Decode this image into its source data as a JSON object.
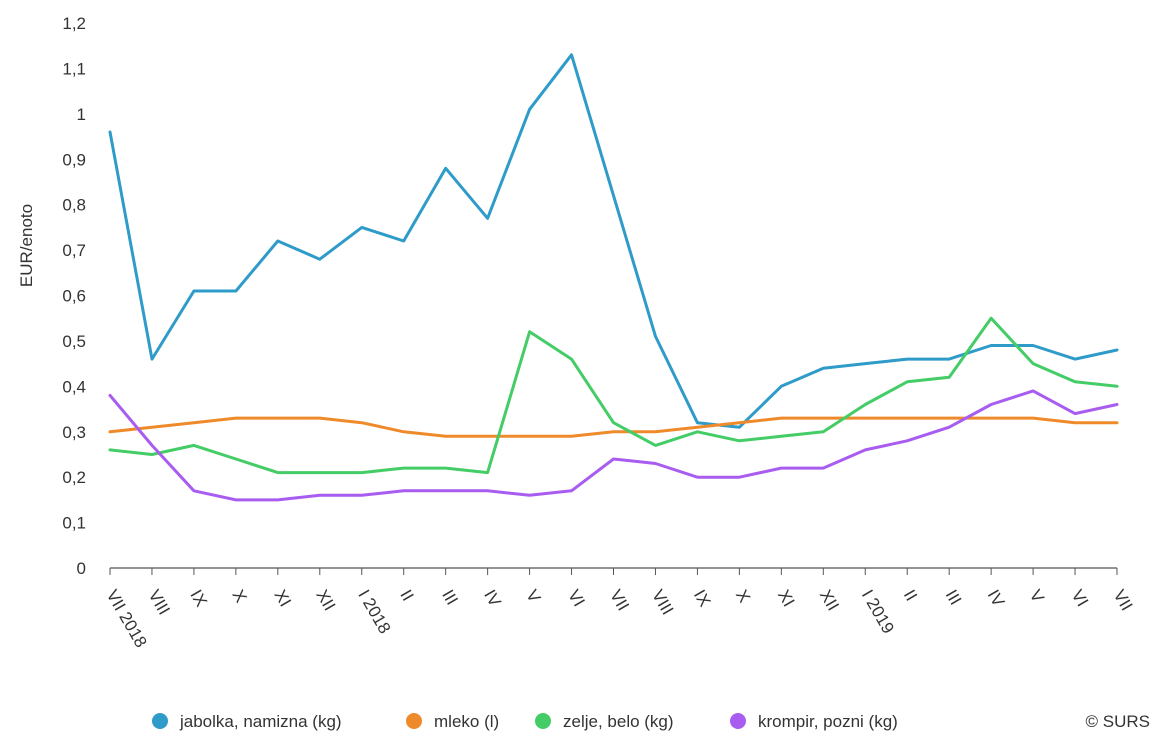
{
  "chart_data": {
    "type": "line",
    "ylabel": "EUR/enoto",
    "ylim": [
      0,
      1.2
    ],
    "yticks": [
      "0",
      "0,1",
      "0,2",
      "0,3",
      "0,4",
      "0,5",
      "0,6",
      "0,7",
      "0,8",
      "0,9",
      "1",
      "1,1",
      "1,2"
    ],
    "categories": [
      "VII 2018",
      "VIII",
      "IX",
      "X",
      "XI",
      "XII",
      "I 2018",
      "II",
      "III",
      "IV",
      "V",
      "VI",
      "VII",
      "VIII",
      "IX",
      "X",
      "XI",
      "XII",
      "I 2019",
      "II",
      "III",
      "IV",
      "V",
      "VI",
      "VII"
    ],
    "grid": false,
    "legend_position": "bottom",
    "series": [
      {
        "name": "jabolka, namizna (kg)",
        "color": "#2e9bc9",
        "values": [
          0.96,
          0.46,
          0.61,
          0.61,
          0.72,
          0.68,
          0.75,
          0.72,
          0.88,
          0.77,
          1.01,
          1.13,
          0.82,
          0.51,
          0.32,
          0.31,
          0.4,
          0.44,
          0.45,
          0.46,
          0.46,
          0.49,
          0.49,
          0.46,
          0.48
        ]
      },
      {
        "name": "mleko (l)",
        "color": "#ef8a2b",
        "values": [
          0.3,
          0.31,
          0.32,
          0.33,
          0.33,
          0.33,
          0.32,
          0.3,
          0.29,
          0.29,
          0.29,
          0.29,
          0.3,
          0.3,
          0.31,
          0.32,
          0.33,
          0.33,
          0.33,
          0.33,
          0.33,
          0.33,
          0.33,
          0.32,
          0.32
        ]
      },
      {
        "name": "zelje, belo (kg)",
        "color": "#44cc66",
        "values": [
          0.26,
          0.25,
          0.27,
          0.24,
          0.21,
          0.21,
          0.21,
          0.22,
          0.22,
          0.21,
          0.52,
          0.46,
          0.32,
          0.27,
          0.3,
          0.28,
          0.29,
          0.3,
          0.36,
          0.41,
          0.42,
          0.55,
          0.45,
          0.41,
          0.4
        ]
      },
      {
        "name": "krompir, pozni (kg)",
        "color": "#a95cf0",
        "values": [
          0.38,
          0.27,
          0.17,
          0.15,
          0.15,
          0.16,
          0.16,
          0.17,
          0.17,
          0.17,
          0.16,
          0.17,
          0.24,
          0.23,
          0.2,
          0.2,
          0.22,
          0.22,
          0.26,
          0.28,
          0.31,
          0.36,
          0.39,
          0.34,
          0.36
        ]
      }
    ],
    "credit": "© SURS"
  }
}
